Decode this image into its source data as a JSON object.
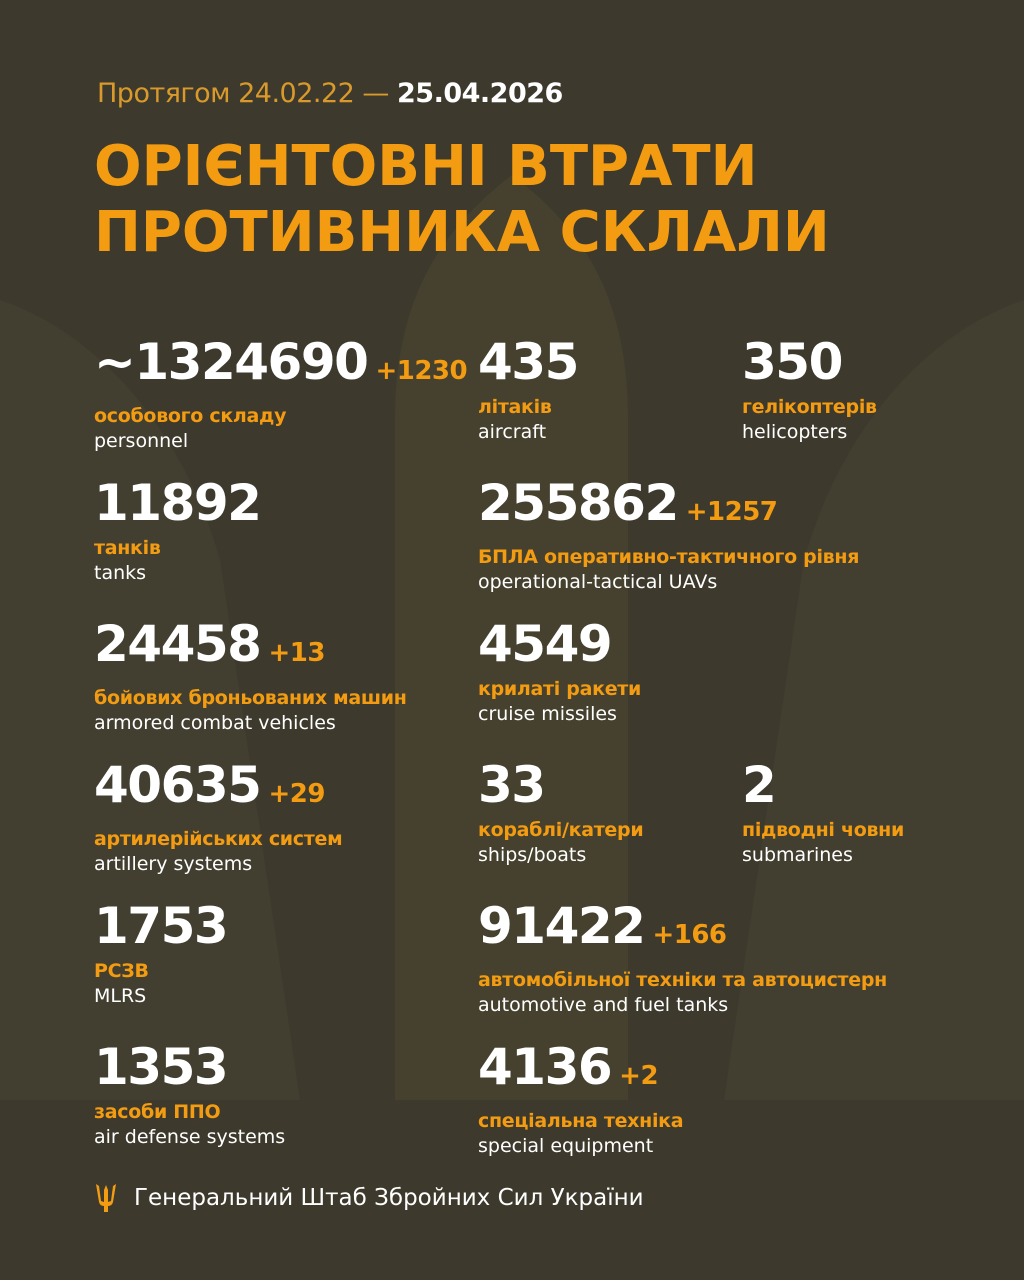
{
  "header": {
    "period_prefix": "Протягом 24.02.22 —",
    "period_end": "25.04.2026",
    "title_line1": "ОРІЄНТОВНІ ВТРАТИ",
    "title_line2": "ПРОТИВНИКА СКЛАЛИ"
  },
  "rows": [
    [
      {
        "value": "~1324690",
        "delta": "+1230",
        "ua": "особового складу",
        "en": "personnel"
      },
      {
        "value": "435",
        "delta": "",
        "ua": "літаків",
        "en": "aircraft"
      },
      {
        "value": "350",
        "delta": "",
        "ua": "гелікоптерів",
        "en": "helicopters"
      }
    ],
    [
      {
        "value": "11892",
        "delta": "",
        "ua": "танків",
        "en": "tanks"
      },
      {
        "value": "255862",
        "delta": "+1257",
        "ua": "БПЛА оперативно-тактичного рівня",
        "en": "operational-tactical UAVs"
      }
    ],
    [
      {
        "value": "24458",
        "delta": "+13",
        "ua": "бойових броньованих машин",
        "en": "armored combat vehicles"
      },
      {
        "value": "4549",
        "delta": "",
        "ua": "крилаті ракети",
        "en": "cruise missiles"
      }
    ],
    [
      {
        "value": "40635",
        "delta": "+29",
        "ua": "артилерійських систем",
        "en": "artillery systems"
      },
      {
        "value": "33",
        "delta": "",
        "ua": "кораблі/катери",
        "en": "ships/boats"
      },
      {
        "value": "2",
        "delta": "",
        "ua": "підводні човни",
        "en": "submarines"
      }
    ],
    [
      {
        "value": "1753",
        "delta": "",
        "ua": "РСЗВ",
        "en": "MLRS"
      },
      {
        "value": "91422",
        "delta": "+166",
        "ua": "автомобільної техніки та автоцистерн",
        "en": "automotive and fuel tanks"
      }
    ],
    [
      {
        "value": "1353",
        "delta": "",
        "ua": "засоби ППО",
        "en": "air defense systems"
      },
      {
        "value": "4136",
        "delta": "+2",
        "ua": "спеціальна техніка",
        "en": "special equipment"
      }
    ]
  ],
  "footer": {
    "icon": "trident-icon",
    "text": "Генеральний Штаб Збройних Сил України"
  },
  "colors": {
    "background": "#3d3a2d",
    "accent": "#f39c12",
    "text": "#ffffff"
  }
}
